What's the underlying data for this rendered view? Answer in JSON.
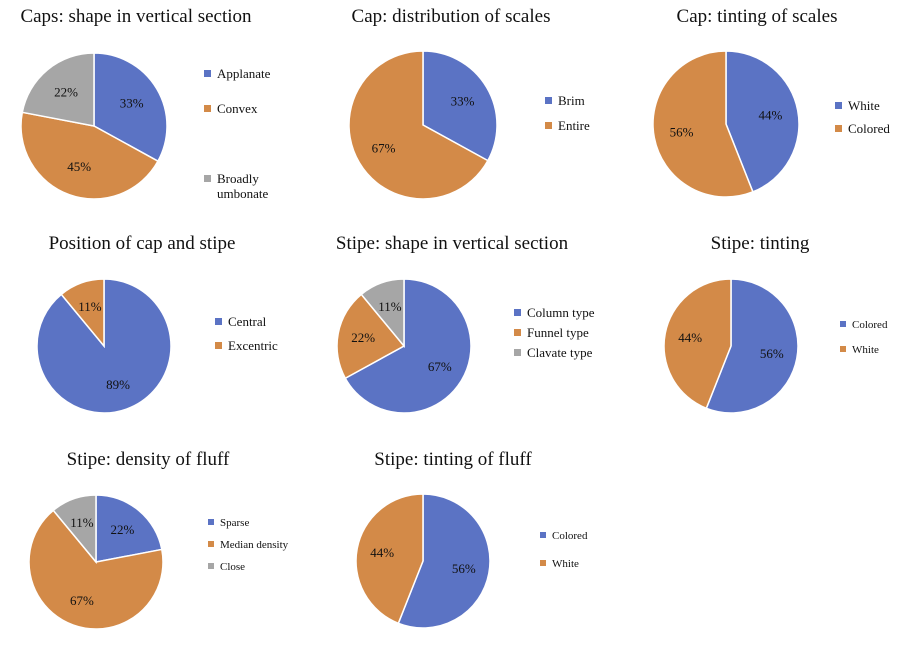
{
  "colors": {
    "blue": "#5b73c4",
    "orange": "#d38a48",
    "gray": "#a6a6a6"
  },
  "chart_data": [
    {
      "type": "pie",
      "title": "Caps: shape in vertical section",
      "slices": [
        {
          "label": "Applanate",
          "value": 33,
          "display": "33%",
          "color": "#5b73c4"
        },
        {
          "label": "Convex",
          "value": 45,
          "display": "45%",
          "color": "#d38a48"
        },
        {
          "label": "Broadly umbonate",
          "label_lines": [
            "Broadly",
            "umbonate"
          ],
          "value": 22,
          "display": "22%",
          "color": "#a6a6a6"
        }
      ]
    },
    {
      "type": "pie",
      "title": "Cap: distribution of scales",
      "slices": [
        {
          "label": "Brim",
          "value": 33,
          "display": "33%",
          "color": "#5b73c4"
        },
        {
          "label": "Entire",
          "value": 67,
          "display": "67%",
          "color": "#d38a48"
        }
      ]
    },
    {
      "type": "pie",
      "title": "Cap: tinting of scales",
      "slices": [
        {
          "label": "White",
          "value": 44,
          "display": "44%",
          "color": "#5b73c4"
        },
        {
          "label": "Colored",
          "value": 56,
          "display": "56%",
          "color": "#d38a48"
        }
      ]
    },
    {
      "type": "pie",
      "title": "Position of cap and stipe",
      "slices": [
        {
          "label": "Central",
          "value": 89,
          "display": "89%",
          "color": "#5b73c4"
        },
        {
          "label": "Excentric",
          "value": 11,
          "display": "11%",
          "color": "#d38a48"
        }
      ]
    },
    {
      "type": "pie",
      "title": "Stipe: shape in vertical section",
      "slices": [
        {
          "label": "Column type",
          "value": 67,
          "display": "67%",
          "color": "#5b73c4"
        },
        {
          "label": "Funnel type",
          "value": 22,
          "display": "22%",
          "color": "#d38a48"
        },
        {
          "label": "Clavate type",
          "value": 11,
          "display": "11%",
          "color": "#a6a6a6"
        }
      ]
    },
    {
      "type": "pie",
      "title": "Stipe: tinting",
      "slices": [
        {
          "label": "Colored",
          "value": 56,
          "display": "56%",
          "color": "#5b73c4"
        },
        {
          "label": "White",
          "value": 44,
          "display": "44%",
          "color": "#d38a48"
        }
      ]
    },
    {
      "type": "pie",
      "title": "Stipe: density of fluff",
      "slices": [
        {
          "label": "Sparse",
          "value": 22,
          "display": "22%",
          "color": "#5b73c4"
        },
        {
          "label": "Median density",
          "value": 67,
          "display": "67%",
          "color": "#d38a48"
        },
        {
          "label": "Close",
          "value": 11,
          "display": "11%",
          "color": "#a6a6a6"
        }
      ]
    },
    {
      "type": "pie",
      "title": "Stipe: tinting of fluff",
      "slices": [
        {
          "label": "Colored",
          "value": 56,
          "display": "56%",
          "color": "#5b73c4"
        },
        {
          "label": "White",
          "value": 44,
          "display": "44%",
          "color": "#d38a48"
        }
      ]
    }
  ]
}
